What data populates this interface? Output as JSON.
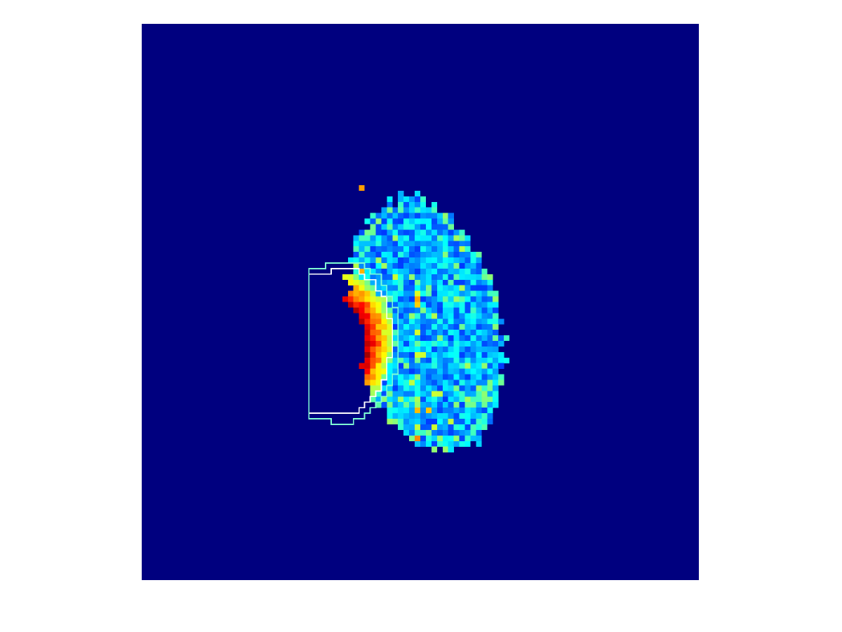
{
  "figure": {
    "background_color": "#ffffff"
  },
  "image": {
    "kind": "perfusion-map",
    "colormap": "jet",
    "background_color": "#00007f",
    "grid": {
      "cols": 100,
      "rows": 100
    },
    "contour_colors": [
      "#ffffff",
      "#7fffd4"
    ]
  }
}
